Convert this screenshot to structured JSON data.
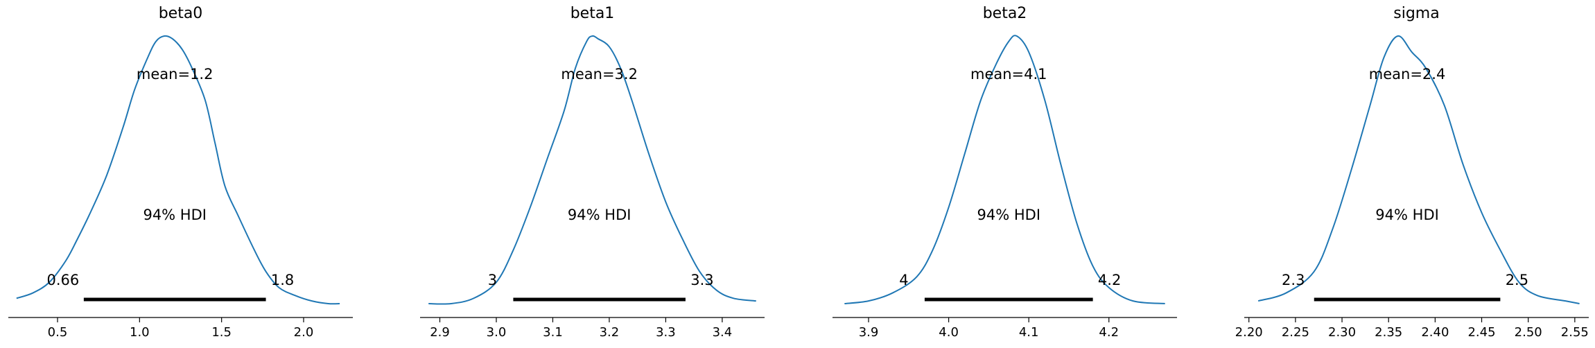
{
  "chart_data": [
    {
      "type": "line",
      "title": "beta0",
      "xlim": [
        0.2,
        2.3
      ],
      "ticks": [
        0.5,
        1.0,
        1.5,
        2.0
      ],
      "tick_labels": [
        "0.5",
        "1.0",
        "1.5",
        "2.0"
      ],
      "mean_label": "mean=1.2",
      "hdi_label": "94% HDI",
      "hdi": [
        0.66,
        1.77
      ],
      "hdi_low_label": "0.66",
      "hdi_high_label": "1.8",
      "density": {
        "x": [
          0.25,
          0.35,
          0.45,
          0.55,
          0.62,
          0.7,
          0.8,
          0.9,
          0.97,
          1.05,
          1.1,
          1.15,
          1.2,
          1.26,
          1.32,
          1.4,
          1.46,
          1.52,
          1.6,
          1.7,
          1.77,
          1.85,
          1.95,
          2.05,
          2.15,
          2.22
        ],
        "y": [
          0.02,
          0.04,
          0.08,
          0.16,
          0.24,
          0.34,
          0.48,
          0.66,
          0.8,
          0.92,
          0.98,
          1.0,
          0.99,
          0.95,
          0.88,
          0.76,
          0.6,
          0.44,
          0.33,
          0.2,
          0.12,
          0.06,
          0.03,
          0.01,
          0.0,
          0.0
        ]
      }
    },
    {
      "type": "line",
      "title": "beta1",
      "xlim": [
        2.865,
        3.475
      ],
      "ticks": [
        2.9,
        3.0,
        3.1,
        3.2,
        3.3,
        3.4
      ],
      "tick_labels": [
        "2.9",
        "3.0",
        "3.1",
        "3.2",
        "3.3",
        "3.4"
      ],
      "mean_label": "mean=3.2",
      "hdi_label": "94% HDI",
      "hdi": [
        3.03,
        3.335
      ],
      "hdi_low_label": "3",
      "hdi_high_label": "3.3",
      "density": {
        "x": [
          2.88,
          2.92,
          2.96,
          3.0,
          3.03,
          3.06,
          3.09,
          3.12,
          3.14,
          3.16,
          3.17,
          3.18,
          3.2,
          3.22,
          3.24,
          3.27,
          3.3,
          3.33,
          3.36,
          3.39,
          3.42,
          3.46
        ],
        "y": [
          0.0,
          0.0,
          0.02,
          0.08,
          0.2,
          0.36,
          0.54,
          0.72,
          0.88,
          0.98,
          1.0,
          0.99,
          0.96,
          0.88,
          0.76,
          0.56,
          0.38,
          0.24,
          0.12,
          0.05,
          0.02,
          0.01
        ]
      }
    },
    {
      "type": "line",
      "title": "beta2",
      "xlim": [
        3.855,
        4.285
      ],
      "ticks": [
        3.9,
        4.0,
        4.1,
        4.2
      ],
      "tick_labels": [
        "3.9",
        "4.0",
        "4.1",
        "4.2"
      ],
      "mean_label": "mean=4.1",
      "hdi_label": "94% HDI",
      "hdi": [
        3.97,
        4.18
      ],
      "hdi_low_label": "4",
      "hdi_high_label": "4.2",
      "density": {
        "x": [
          3.87,
          3.9,
          3.93,
          3.96,
          3.98,
          4.0,
          4.02,
          4.04,
          4.06,
          4.075,
          4.085,
          4.1,
          4.12,
          4.14,
          4.16,
          4.18,
          4.2,
          4.23,
          4.27
        ],
        "y": [
          0.0,
          0.01,
          0.04,
          0.1,
          0.2,
          0.36,
          0.56,
          0.76,
          0.9,
          0.98,
          1.0,
          0.94,
          0.76,
          0.52,
          0.3,
          0.14,
          0.06,
          0.01,
          0.0
        ]
      }
    },
    {
      "type": "line",
      "title": "sigma",
      "xlim": [
        2.195,
        2.565
      ],
      "ticks": [
        2.2,
        2.25,
        2.3,
        2.35,
        2.4,
        2.45,
        2.5,
        2.55
      ],
      "tick_labels": [
        "2.20",
        "2.25",
        "2.30",
        "2.35",
        "2.40",
        "2.45",
        "2.50",
        "2.55"
      ],
      "mean_label": "mean=2.4",
      "hdi_label": "94% HDI",
      "hdi": [
        2.27,
        2.47
      ],
      "hdi_low_label": "2.3",
      "hdi_high_label": "2.5",
      "density": {
        "x": [
          2.21,
          2.24,
          2.27,
          2.29,
          2.31,
          2.33,
          2.345,
          2.36,
          2.375,
          2.39,
          2.41,
          2.43,
          2.45,
          2.47,
          2.49,
          2.51,
          2.54,
          2.555
        ],
        "y": [
          0.01,
          0.04,
          0.12,
          0.28,
          0.5,
          0.74,
          0.92,
          1.0,
          0.94,
          0.88,
          0.74,
          0.52,
          0.34,
          0.2,
          0.08,
          0.03,
          0.01,
          0.0
        ]
      }
    }
  ],
  "colors": {
    "curve": "#1f77b4",
    "hdi_bar": "#000000",
    "axis": "#000000"
  }
}
